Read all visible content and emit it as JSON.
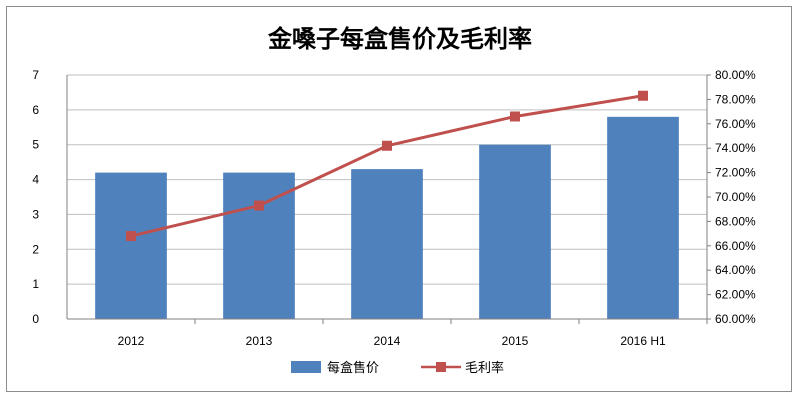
{
  "chart_data": {
    "type": "bar",
    "title": "金嗓子每盒售价及毛利率",
    "categories": [
      "2012",
      "2013",
      "2014",
      "2015",
      "2016 H1"
    ],
    "series": [
      {
        "name": "每盒售价",
        "type": "bar",
        "axis": "left",
        "values": [
          4.2,
          4.2,
          4.3,
          5.0,
          5.8
        ],
        "color": "#4f81bd"
      },
      {
        "name": "毛利率",
        "type": "line",
        "axis": "right",
        "values": [
          66.8,
          69.3,
          74.2,
          76.6,
          78.3
        ],
        "color": "#c0504d"
      }
    ],
    "y_left": {
      "min": 0,
      "max": 7,
      "ticks": [
        "0",
        "1",
        "2",
        "3",
        "4",
        "5",
        "6",
        "7"
      ]
    },
    "y_right": {
      "min": 60,
      "max": 80,
      "ticks": [
        "60.00%",
        "62.00%",
        "64.00%",
        "66.00%",
        "68.00%",
        "70.00%",
        "72.00%",
        "74.00%",
        "76.00%",
        "78.00%",
        "80.00%"
      ]
    },
    "grid": true,
    "legend_position": "bottom"
  }
}
